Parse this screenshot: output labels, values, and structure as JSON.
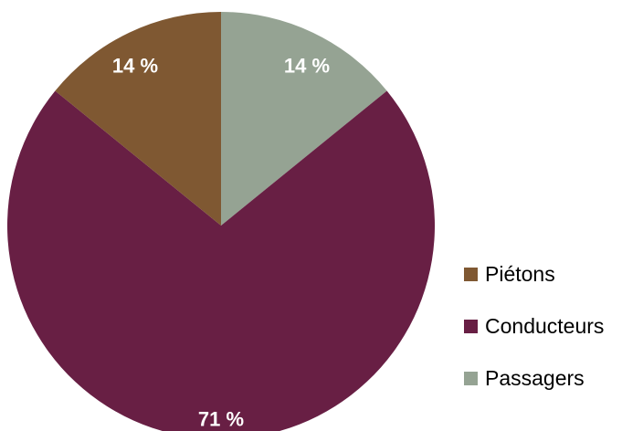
{
  "chart_data": {
    "type": "pie",
    "title": "",
    "start_angle_deg": 0,
    "direction": "clockwise",
    "slices": [
      {
        "name": "Passagers",
        "value": 14,
        "label": "14 %",
        "color": "#95a393"
      },
      {
        "name": "Conducteurs",
        "value": 71,
        "label": "71 %",
        "color": "#681f44"
      },
      {
        "name": "Piétons",
        "value": 14,
        "label": "14 %",
        "color": "#7f5832"
      }
    ],
    "legend_position": "right",
    "legend": [
      {
        "name": "Piétons",
        "color": "#7f5832"
      },
      {
        "name": "Conducteurs",
        "color": "#681f44"
      },
      {
        "name": "Passagers",
        "color": "#95a393"
      }
    ]
  }
}
